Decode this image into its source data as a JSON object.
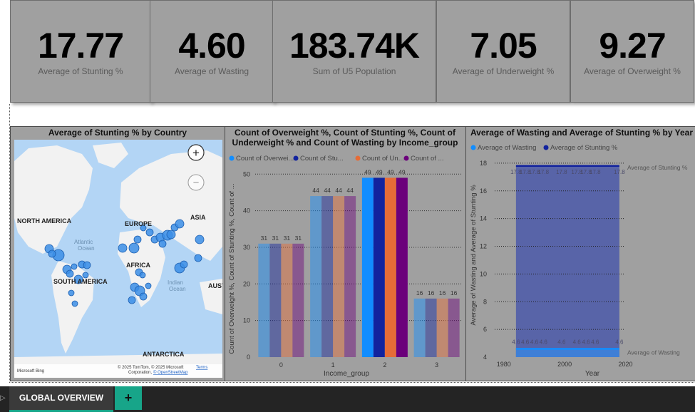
{
  "kpis": [
    {
      "value": "17.77",
      "label": "Average of Stunting %"
    },
    {
      "value": "4.60",
      "label": "Average of Wasting"
    },
    {
      "value": "183.74K",
      "label": "Sum of U5 Population"
    },
    {
      "value": "7.05",
      "label": "Average of Underweight %"
    },
    {
      "value": "9.27",
      "label": "Average of Overweight %"
    }
  ],
  "map": {
    "title": "Average of Stunting % by Country",
    "labels": {
      "north_america": "NORTH AMERICA",
      "south_america": "SOUTH AMERICA",
      "europe": "EUROPE",
      "asia": "ASIA",
      "africa": "AFRICA",
      "antarctica": "ANTARCTICA",
      "atlantic": "Atlantic",
      "ocean1": "Ocean",
      "indian": "Indian",
      "ocean2": "Ocean",
      "aus": "AUST"
    },
    "bing": "Microsoft Bing",
    "copyright1": "© 2025 TomTom, © 2025 Microsoft",
    "copyright2": "Corporation,",
    "osm": "© OpenStreetMap",
    "terms": "Terms",
    "zoom_in": "+",
    "zoom_out": "−",
    "colors": {
      "water": "#b3d5f5",
      "land": "#f2f2f2",
      "bubble": "#3b8ee6"
    }
  },
  "chart_data": [
    {
      "type": "bar",
      "title": "Count of Overweight %, Count of Stunting %, Count of Underweight % and Count of Wasting by Income_group",
      "title_line1": "Count of Overweight %, Count of Stunting %, Count of",
      "title_line2": "Underweight % and Count of Wasting by Income_group",
      "xlabel": "Income_group",
      "ylabel": "Count of Overweight %, Count of Stunting %, Count of ...",
      "categories": [
        "0",
        "1",
        "2",
        "3"
      ],
      "ylim": [
        0,
        52
      ],
      "yticks": [
        0,
        10,
        20,
        30,
        40,
        50
      ],
      "highlighted_category": "2",
      "series": [
        {
          "name": "Count of Overwei...",
          "color": "#118dff",
          "values": [
            31,
            44,
            49,
            16
          ]
        },
        {
          "name": "Count of Stu...",
          "color": "#12239e",
          "values": [
            31,
            44,
            49,
            16
          ]
        },
        {
          "name": "Count of Un...",
          "color": "#e66c37",
          "values": [
            31,
            44,
            49,
            16
          ]
        },
        {
          "name": "Count of ...",
          "color": "#6b007b",
          "values": [
            31,
            44,
            49,
            16
          ]
        }
      ]
    },
    {
      "type": "area",
      "title": "Average of Wasting and Average of Stunting % by Year",
      "xlabel": "Year",
      "ylabel": "Average of Wasting and Average of Stunting %",
      "xlim": [
        1977,
        2022
      ],
      "xticks": [
        1980,
        2000,
        2020
      ],
      "ylim": [
        4,
        18.2
      ],
      "yticks": [
        4,
        6,
        8,
        10,
        12,
        14,
        16,
        18
      ],
      "series": [
        {
          "name": "Average of Wasting",
          "color": "#118dff",
          "x": [
            1984,
            1987,
            1990,
            1993,
            1999,
            2004,
            2007,
            2010,
            2018
          ],
          "values": [
            4.6,
            4.6,
            4.6,
            4.6,
            4.6,
            4.6,
            4.6,
            4.6,
            4.6
          ],
          "data_label": "4.6",
          "end_label": "Average of Wasting"
        },
        {
          "name": "Average of Stunting %",
          "color": "#12239e",
          "x": [
            1984,
            1987,
            1990,
            1993,
            1999,
            2004,
            2007,
            2010,
            2018
          ],
          "values": [
            17.8,
            17.8,
            17.8,
            17.8,
            17.8,
            17.8,
            17.8,
            17.8,
            17.8
          ],
          "data_label": "17.8",
          "end_label": "Average of Stunting %"
        }
      ]
    }
  ],
  "footer": {
    "tab_label": "GLOBAL OVERVIEW",
    "add_label": "+"
  }
}
